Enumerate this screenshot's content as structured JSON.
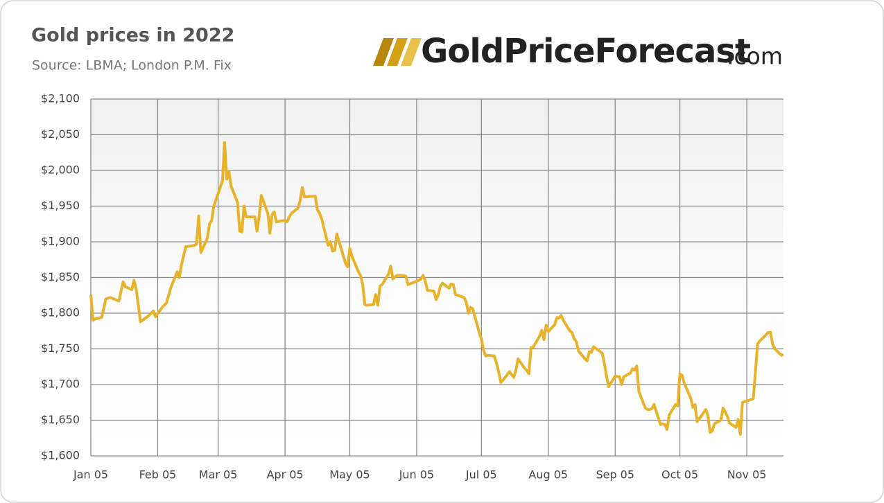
{
  "chart_data": {
    "type": "line",
    "title": "Gold prices in 2022",
    "subtitle": "Source: LBMA; London P.M. Fix",
    "logo": [
      "GoldPriceForecast",
      ".com"
    ],
    "x": [
      "Jan 05",
      "Jan 06",
      "Jan 07",
      "Jan 10",
      "Jan 12",
      "Jan 14",
      "Jan 18",
      "Jan 20",
      "Jan 21",
      "Jan 24",
      "Jan 25",
      "Jan 26",
      "Jan 28",
      "Feb 01",
      "Feb 03",
      "Feb 04",
      "Feb 07",
      "Feb 09",
      "Feb 11",
      "Feb 14",
      "Feb 15",
      "Feb 16",
      "Feb 18",
      "Feb 22",
      "Feb 23",
      "Feb 24",
      "Feb 25",
      "Feb 28",
      "Mar 01",
      "Mar 02",
      "Mar 03",
      "Mar 07",
      "Mar 08",
      "Mar 09",
      "Mar 10",
      "Mar 11",
      "Mar 14",
      "Mar 15",
      "Mar 16",
      "Mar 17",
      "Mar 18",
      "Mar 22",
      "Mar 23",
      "Mar 24",
      "Mar 25",
      "Mar 28",
      "Mar 29",
      "Mar 30",
      "Mar 31",
      "Apr 01",
      "Apr 05",
      "Apr 06",
      "Apr 07",
      "Apr 08",
      "Apr 11",
      "Apr 12",
      "Apr 13",
      "Apr 14",
      "Apr 19",
      "Apr 20",
      "Apr 21",
      "Apr 22",
      "Apr 25",
      "Apr 26",
      "Apr 27",
      "Apr 28",
      "Apr 29",
      "May 03",
      "May 04",
      "May 05",
      "May 06",
      "May 09",
      "May 10",
      "May 11",
      "May 12",
      "May 13",
      "May 16",
      "May 17",
      "May 18",
      "May 19",
      "May 20",
      "May 23",
      "May 24",
      "May 25",
      "May 26",
      "May 27",
      "May 31",
      "Jun 01",
      "Jun 06",
      "Jun 07",
      "Jun 08",
      "Jun 09",
      "Jun 10",
      "Jun 13",
      "Jun 14",
      "Jun 15",
      "Jun 16",
      "Jun 17",
      "Jun 20",
      "Jun 21",
      "Jun 22",
      "Jun 23",
      "Jun 24",
      "Jun 27",
      "Jun 28",
      "Jun 29",
      "Jun 30",
      "Jul 01",
      "Jul 04",
      "Jul 05",
      "Jul 06",
      "Jul 07",
      "Jul 08",
      "Jul 11",
      "Jul 12",
      "Jul 13",
      "Jul 14",
      "Jul 15",
      "Jul 18",
      "Jul 19",
      "Jul 20",
      "Jul 21",
      "Jul 22",
      "Jul 25",
      "Jul 26",
      "Jul 27",
      "Jul 28",
      "Jul 29",
      "Aug 01",
      "Aug 02",
      "Aug 03",
      "Aug 04",
      "Aug 05",
      "Aug 08",
      "Aug 09",
      "Aug 10",
      "Aug 11",
      "Aug 12",
      "Aug 15",
      "Aug 16",
      "Aug 17",
      "Aug 18",
      "Aug 19",
      "Aug 22",
      "Aug 23",
      "Aug 24",
      "Aug 25",
      "Aug 26",
      "Aug 30",
      "Aug 31",
      "Sep 01",
      "Sep 02",
      "Sep 05",
      "Sep 06",
      "Sep 07",
      "Sep 08",
      "Sep 09",
      "Sep 12",
      "Sep 13",
      "Sep 14",
      "Sep 15",
      "Sep 16",
      "Sep 19",
      "Sep 20",
      "Sep 21",
      "Sep 22",
      "Sep 23",
      "Sep 26",
      "Sep 27",
      "Sep 28",
      "Sep 29",
      "Sep 30",
      "Oct 03",
      "Oct 04",
      "Oct 05",
      "Oct 06",
      "Oct 07",
      "Oct 10",
      "Oct 11",
      "Oct 12",
      "Oct 13",
      "Oct 14",
      "Oct 17",
      "Oct 18",
      "Oct 19",
      "Oct 20",
      "Oct 21",
      "Oct 24",
      "Oct 25",
      "Oct 26",
      "Oct 27",
      "Oct 28",
      "Oct 31",
      "Nov 01",
      "Nov 02",
      "Nov 03",
      "Nov 04",
      "Nov 07",
      "Nov 08",
      "Nov 09",
      "Nov 10",
      "Nov 11",
      "Nov 14",
      "Nov 15",
      "Nov 16",
      "Nov 17",
      "Nov 18",
      "Nov 21",
      "Nov 22"
    ],
    "series": [
      {
        "color": "#e8b32a",
        "values": [
          1826,
          1790,
          1792,
          1794,
          1820,
          1822,
          1817,
          1844,
          1837,
          1833,
          1846,
          1834,
          1788,
          1797,
          1803,
          1795,
          1808,
          1814,
          1835,
          1858,
          1850,
          1868,
          1893,
          1895,
          1897,
          1936,
          1885,
          1905,
          1925,
          1930,
          1950,
          1985,
          2039,
          1988,
          1999,
          1978,
          1955,
          1915,
          1914,
          1950,
          1935,
          1935,
          1915,
          1935,
          1965,
          1940,
          1912,
          1938,
          1942,
          1928,
          1930,
          1928,
          1935,
          1940,
          1947,
          1958,
          1976,
          1963,
          1964,
          1945,
          1940,
          1932,
          1895,
          1900,
          1887,
          1888,
          1911,
          1870,
          1865,
          1891,
          1880,
          1858,
          1853,
          1840,
          1812,
          1811,
          1812,
          1826,
          1811,
          1838,
          1840,
          1855,
          1866,
          1848,
          1851,
          1853,
          1852,
          1840,
          1846,
          1848,
          1853,
          1845,
          1832,
          1831,
          1819,
          1825,
          1838,
          1842,
          1835,
          1841,
          1840,
          1826,
          1825,
          1822,
          1815,
          1800,
          1808,
          1806,
          1773,
          1764,
          1748,
          1740,
          1741,
          1740,
          1730,
          1718,
          1703,
          1706,
          1718,
          1714,
          1710,
          1720,
          1736,
          1723,
          1720,
          1715,
          1752,
          1752,
          1768,
          1776,
          1763,
          1783,
          1774,
          1784,
          1794,
          1793,
          1797,
          1790,
          1775,
          1773,
          1764,
          1760,
          1747,
          1736,
          1733,
          1746,
          1745,
          1753,
          1744,
          1729,
          1712,
          1697,
          1712,
          1711,
          1711,
          1700,
          1711,
          1716,
          1722,
          1720,
          1726,
          1690,
          1667,
          1665,
          1665,
          1666,
          1672,
          1644,
          1645,
          1644,
          1637,
          1657,
          1672,
          1670,
          1715,
          1713,
          1702,
          1681,
          1668,
          1672,
          1648,
          1652,
          1665,
          1656,
          1633,
          1635,
          1645,
          1650,
          1667,
          1662,
          1655,
          1646,
          1640,
          1651,
          1630,
          1675,
          1676,
          1679,
          1680,
          1718,
          1757,
          1761,
          1770,
          1773,
          1773,
          1756,
          1750,
          1741,
          1742
        ]
      }
    ],
    "xlim": [
      "Jan 05",
      "Nov 22"
    ],
    "xticks": [
      "Jan 05",
      "Feb 05",
      "Mar 05",
      "Apr 05",
      "May 05",
      "Jun 05",
      "Jul 05",
      "Aug 05",
      "Sep 05",
      "Oct 05",
      "Nov 05"
    ],
    "ylim": [
      1600,
      2100
    ],
    "yticks": [
      {
        "value": 1600,
        "label": "$1,600"
      },
      {
        "value": 1650,
        "label": "$1,650"
      },
      {
        "value": 1700,
        "label": "$1,700"
      },
      {
        "value": 1750,
        "label": "$1,750"
      },
      {
        "value": 1800,
        "label": "$1,800"
      },
      {
        "value": 1850,
        "label": "$1,850"
      },
      {
        "value": 1900,
        "label": "$1,900"
      },
      {
        "value": 1950,
        "label": "$1,950"
      },
      {
        "value": 2000,
        "label": "$2,000"
      },
      {
        "value": 2050,
        "label": "$2,050"
      },
      {
        "value": 2100,
        "label": "$2,100"
      }
    ],
    "grid": true
  }
}
